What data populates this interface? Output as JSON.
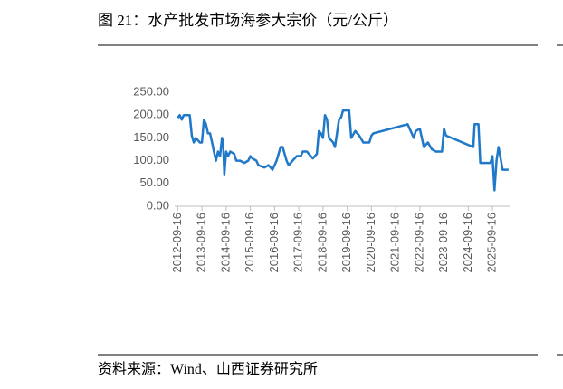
{
  "chart_data": {
    "type": "line",
    "title": "图 21：水产批发市场海参大宗价（元/公斤）",
    "source": "资料来源：Wind、山西证券研究所",
    "color": "#1f78c8",
    "x": [
      "2012-09-16",
      "2012-10-16",
      "2012-11-16",
      "2012-12-16",
      "2013-01-16",
      "2013-03-16",
      "2013-04-16",
      "2013-05-16",
      "2013-06-16",
      "2013-08-16",
      "2013-09-16",
      "2013-10-16",
      "2013-11-16",
      "2013-12-16",
      "2014-01-16",
      "2014-02-16",
      "2014-03-16",
      "2014-04-16",
      "2014-05-16",
      "2014-06-16",
      "2014-07-16",
      "2014-08-01",
      "2014-08-20",
      "2014-09-16",
      "2014-10-16",
      "2014-11-16",
      "2015-01-16",
      "2015-02-16",
      "2015-04-16",
      "2015-06-16",
      "2015-08-16",
      "2015-09-16",
      "2015-10-16",
      "2015-12-16",
      "2016-01-16",
      "2016-04-16",
      "2016-06-16",
      "2016-08-16",
      "2016-10-16",
      "2016-12-16",
      "2017-01-16",
      "2017-03-16",
      "2017-04-16",
      "2017-06-16",
      "2017-08-16",
      "2017-10-16",
      "2017-11-16",
      "2018-01-16",
      "2018-03-16",
      "2018-04-16",
      "2018-06-16",
      "2018-07-16",
      "2018-08-16",
      "2018-09-16",
      "2018-10-16",
      "2018-11-16",
      "2018-12-16",
      "2019-02-16",
      "2019-03-16",
      "2019-05-16",
      "2019-06-16",
      "2019-07-16",
      "2019-09-16",
      "2019-10-16",
      "2019-11-16",
      "2020-01-16",
      "2020-03-16",
      "2020-05-16",
      "2020-06-16",
      "2020-08-16",
      "2020-09-16",
      "2020-10-16",
      "2022-03-16",
      "2022-06-16",
      "2022-07-16",
      "2022-09-16",
      "2022-11-16",
      "2023-01-16",
      "2023-03-16",
      "2023-05-16",
      "2023-08-16",
      "2023-09-16",
      "2023-10-16",
      "2024-12-01",
      "2024-12-20",
      "2025-02-16",
      "2025-03-16",
      "2025-05-16",
      "2025-08-16",
      "2025-09-16",
      "2025-10-16",
      "2025-11-16",
      "2025-12-16",
      "2026-01-16",
      "2026-02-16",
      "2026-05-16"
    ],
    "values": [
      194,
      200,
      190,
      200,
      200,
      200,
      155,
      140,
      150,
      140,
      140,
      190,
      180,
      160,
      160,
      140,
      120,
      100,
      120,
      110,
      150,
      140,
      70,
      120,
      110,
      120,
      115,
      100,
      100,
      95,
      100,
      110,
      105,
      100,
      90,
      85,
      90,
      80,
      100,
      130,
      130,
      100,
      90,
      100,
      110,
      110,
      120,
      120,
      110,
      105,
      115,
      165,
      160,
      150,
      200,
      190,
      150,
      140,
      130,
      190,
      195,
      210,
      210,
      210,
      150,
      165,
      155,
      140,
      140,
      140,
      155,
      160,
      180,
      150,
      165,
      170,
      130,
      140,
      125,
      120,
      120,
      170,
      155,
      130,
      180,
      180,
      95,
      95,
      95,
      110,
      35,
      100,
      130,
      105,
      80,
      80
    ],
    "xlim": [
      "2012-08-01",
      "2026-06-01"
    ],
    "ylim": [
      0,
      250
    ],
    "xticks": [
      "2012-09-16",
      "2013-09-16",
      "2014-09-16",
      "2015-09-16",
      "2016-09-16",
      "2017-09-16",
      "2018-09-16",
      "2019-09-16",
      "2020-09-16",
      "2021-09-16",
      "2022-09-16",
      "2023-09-16",
      "2024-09-16",
      "2025-09-16"
    ],
    "yticks": [
      {
        "value": 0,
        "label": "0.00"
      },
      {
        "value": 50,
        "label": "50.00"
      },
      {
        "value": 100,
        "label": "100.00"
      },
      {
        "value": 150,
        "label": "150.00"
      },
      {
        "value": 200,
        "label": "200.00"
      },
      {
        "value": 250,
        "label": "250.00"
      }
    ]
  }
}
